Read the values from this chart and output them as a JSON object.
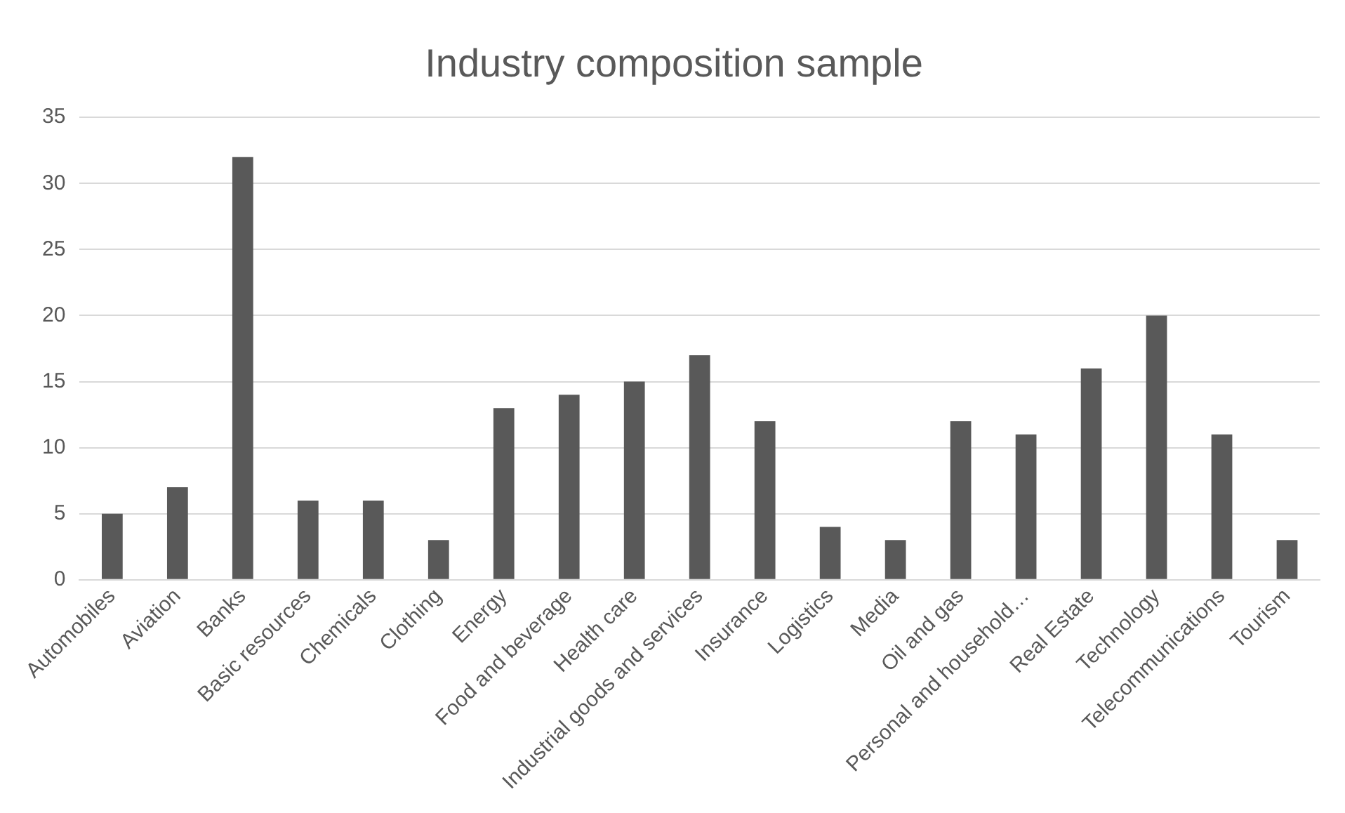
{
  "chart_data": {
    "type": "bar",
    "title": "Industry composition sample",
    "categories": [
      "Automobiles",
      "Aviation",
      "Banks",
      "Basic resources",
      "Chemicals",
      "Clothing",
      "Energy",
      "Food and beverage",
      "Health care",
      "Industrial goods and services",
      "Insurance",
      "Logistics",
      "Media",
      "Oil and gas",
      "Personal and household…",
      "Real Estate",
      "Technology",
      "Telecommunications",
      "Tourism"
    ],
    "values": [
      5,
      7,
      32,
      6,
      6,
      3,
      13,
      14,
      15,
      17,
      12,
      4,
      3,
      12,
      11,
      16,
      20,
      11,
      3
    ],
    "color": "#595959",
    "ylim": [
      0,
      35
    ],
    "yticks": [
      0,
      5,
      10,
      15,
      20,
      25,
      30,
      35
    ],
    "grid": "y"
  }
}
